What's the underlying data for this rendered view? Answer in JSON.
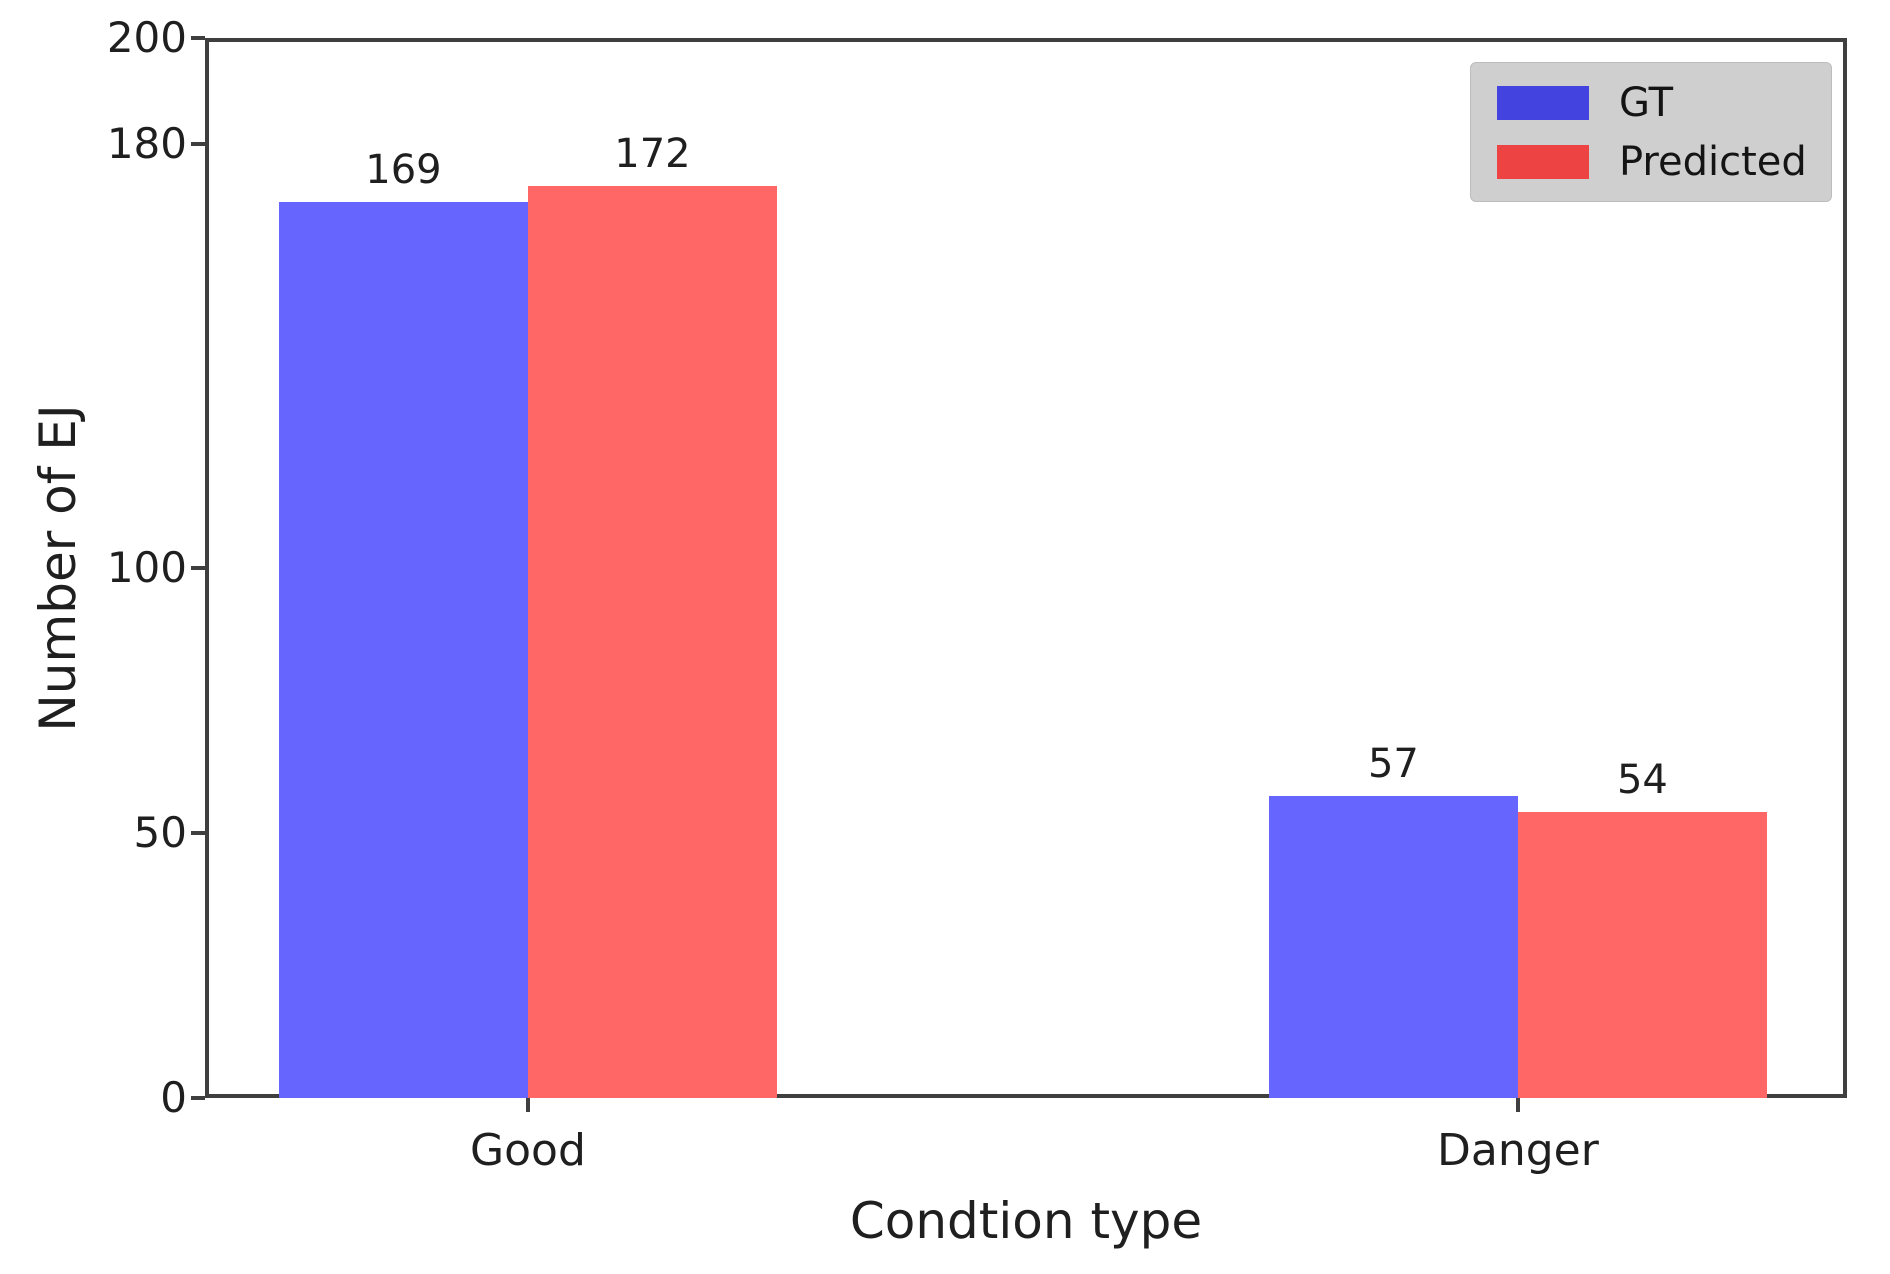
{
  "chart_data": {
    "type": "bar",
    "categories": [
      "Good",
      "Danger"
    ],
    "series": [
      {
        "name": "GT",
        "color": "#6666ff",
        "legend_color": "#4343df",
        "values": [
          169,
          57
        ]
      },
      {
        "name": "Predicted",
        "color": "#ff6666",
        "legend_color": "#ee4343",
        "values": [
          172,
          54
        ]
      }
    ],
    "title": "",
    "xlabel": "Condtion type",
    "ylabel": "Number of EJ",
    "ylim": [
      0,
      200
    ],
    "yticks": [
      0,
      50,
      100,
      180,
      200
    ],
    "bar_labels_shown": true,
    "grid": false,
    "legend": {
      "position": "upper right",
      "background": "#cfcfcf",
      "entries": [
        "GT",
        "Predicted"
      ]
    },
    "spine_color": "#3f3f3f",
    "text_color": "#1f1f1f"
  }
}
